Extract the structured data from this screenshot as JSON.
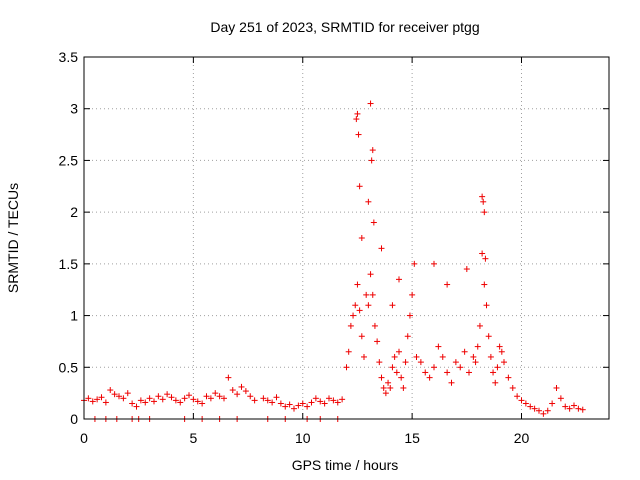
{
  "chart_data": {
    "type": "scatter",
    "title": "Day 251 of 2023, SRMTID for receiver ptgg",
    "xlabel": "GPS time / hours",
    "ylabel": "SRMTID / TECUs",
    "xlim": [
      0,
      24
    ],
    "ylim": [
      0,
      3.5
    ],
    "x_ticks": [
      0,
      5,
      10,
      15,
      20
    ],
    "x_tick_labels": [
      "0",
      "5",
      "10",
      "15",
      "20"
    ],
    "y_ticks": [
      0,
      0.5,
      1,
      1.5,
      2,
      2.5,
      3,
      3.5
    ],
    "y_tick_labels": [
      "0",
      "0.5",
      "1",
      "1.5",
      "2",
      "2.5",
      "3",
      "3.5"
    ],
    "grid": true,
    "marker": "plus",
    "color": "#ee0000",
    "series": [
      {
        "name": "SRMTID",
        "x": [
          0.0,
          0.2,
          0.4,
          0.6,
          0.8,
          1.0,
          1.2,
          1.4,
          1.6,
          1.8,
          2.0,
          2.2,
          2.4,
          2.6,
          2.8,
          3.0,
          3.2,
          3.4,
          3.6,
          3.8,
          4.0,
          4.2,
          4.4,
          4.6,
          4.8,
          5.0,
          5.2,
          5.4,
          5.6,
          5.8,
          6.0,
          6.2,
          6.4,
          6.6,
          6.8,
          7.0,
          7.2,
          7.4,
          7.6,
          7.8,
          8.2,
          8.4,
          8.6,
          8.8,
          9.0,
          9.2,
          9.4,
          9.6,
          9.8,
          10.0,
          10.2,
          10.4,
          10.6,
          10.8,
          11.0,
          11.2,
          11.4,
          11.6,
          11.8,
          12.0,
          12.1,
          12.2,
          12.3,
          12.4,
          12.5,
          12.6,
          12.7,
          12.8,
          12.9,
          13.0,
          13.1,
          13.2,
          13.3,
          13.4,
          13.5,
          13.6,
          13.7,
          13.8,
          13.9,
          14.0,
          14.1,
          14.2,
          14.3,
          14.4,
          14.5,
          14.6,
          14.7,
          14.8,
          14.9,
          15.0,
          15.1,
          15.2,
          15.4,
          15.6,
          15.8,
          16.0,
          16.2,
          16.4,
          16.6,
          16.8,
          17.0,
          17.2,
          17.4,
          17.6,
          17.8,
          17.9,
          18.0,
          18.1,
          18.2,
          18.3,
          18.4,
          18.5,
          18.6,
          18.7,
          18.8,
          18.9,
          19.0,
          19.1,
          19.2,
          19.4,
          19.6,
          19.8,
          20.0,
          20.2,
          20.4,
          20.6,
          20.8,
          21.0,
          21.2,
          21.4,
          21.6,
          21.8,
          22.0,
          22.2,
          22.4,
          22.6,
          22.8,
          12.45,
          12.5,
          12.55,
          13.1,
          13.15,
          13.2,
          12.6,
          13.0,
          13.25,
          12.7,
          13.6,
          18.2,
          18.25,
          18.3,
          18.35,
          17.5,
          16.6,
          16.0,
          14.4,
          14.1,
          0.5,
          1.0,
          1.5,
          2.2,
          2.5,
          3.0,
          4.6,
          5.4,
          6.2,
          7.0,
          8.4,
          9.2,
          10.2,
          10.8,
          11.6
        ],
        "y": [
          0.18,
          0.2,
          0.17,
          0.19,
          0.21,
          0.16,
          0.28,
          0.24,
          0.22,
          0.2,
          0.25,
          0.15,
          0.12,
          0.18,
          0.16,
          0.2,
          0.17,
          0.22,
          0.19,
          0.24,
          0.21,
          0.18,
          0.16,
          0.2,
          0.23,
          0.19,
          0.17,
          0.15,
          0.22,
          0.2,
          0.25,
          0.22,
          0.2,
          0.4,
          0.28,
          0.24,
          0.31,
          0.27,
          0.22,
          0.18,
          0.2,
          0.18,
          0.16,
          0.21,
          0.15,
          0.12,
          0.14,
          0.1,
          0.13,
          0.15,
          0.12,
          0.16,
          0.2,
          0.17,
          0.15,
          0.2,
          0.18,
          0.16,
          0.19,
          0.5,
          0.65,
          0.9,
          1.0,
          1.1,
          1.3,
          1.05,
          0.8,
          0.6,
          1.2,
          1.1,
          1.4,
          1.2,
          0.9,
          0.75,
          0.55,
          0.4,
          0.3,
          0.25,
          0.35,
          0.3,
          0.5,
          0.6,
          0.45,
          0.65,
          0.4,
          0.3,
          0.55,
          0.8,
          1.0,
          1.2,
          1.5,
          0.6,
          0.55,
          0.45,
          0.4,
          0.5,
          0.7,
          0.6,
          0.45,
          0.35,
          0.55,
          0.5,
          0.65,
          0.45,
          0.6,
          0.55,
          0.7,
          0.9,
          1.6,
          1.3,
          1.1,
          0.8,
          0.6,
          0.45,
          0.35,
          0.5,
          0.7,
          0.65,
          0.55,
          0.4,
          0.3,
          0.22,
          0.18,
          0.15,
          0.12,
          0.1,
          0.08,
          0.05,
          0.08,
          0.15,
          0.3,
          0.2,
          0.12,
          0.1,
          0.13,
          0.1,
          0.09,
          2.9,
          2.95,
          2.75,
          3.05,
          2.5,
          2.6,
          2.25,
          2.1,
          1.9,
          1.75,
          1.65,
          2.15,
          2.1,
          2.0,
          1.55,
          1.45,
          1.3,
          1.5,
          1.35,
          1.1,
          0.0,
          0.0,
          0.0,
          0.0,
          0.0,
          0.0,
          0.0,
          0.0,
          0.0,
          0.0,
          0.0,
          0.0,
          0.0,
          0.0,
          0.0
        ]
      }
    ]
  }
}
